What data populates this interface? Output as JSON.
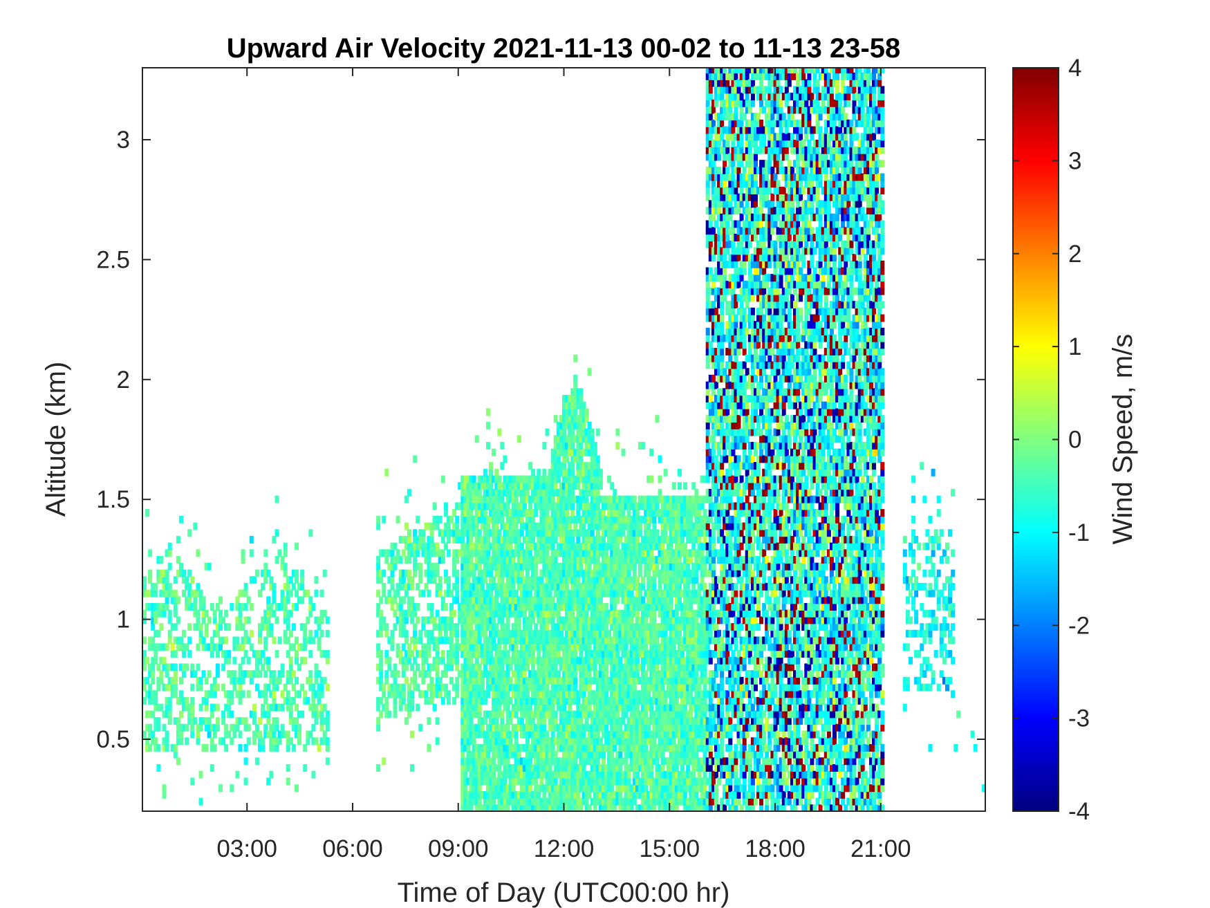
{
  "chart_data": {
    "type": "heatmap",
    "title": "Upward Air Velocity 2021-11-13 00-02 to 11-13 23-58",
    "xlabel": "Time of Day (UTC00:00 hr)",
    "ylabel": "Altitude (km)",
    "colorbar_label": "Wind Speed, m/s",
    "xlim": [
      0.03,
      23.97
    ],
    "ylim": [
      0.2,
      3.3
    ],
    "clim": [
      -4,
      4
    ],
    "colormap": "jet",
    "x_ticks": [
      3,
      6,
      9,
      12,
      15,
      18,
      21
    ],
    "x_tick_labels": [
      "03:00",
      "06:00",
      "09:00",
      "12:00",
      "15:00",
      "18:00",
      "21:00"
    ],
    "y_ticks": [
      0.5,
      1,
      1.5,
      2,
      2.5,
      3
    ],
    "y_tick_labels": [
      "0.5",
      "1",
      "1.5",
      "2",
      "2.5",
      "3"
    ],
    "colorbar_ticks": [
      4,
      3,
      2,
      1,
      0,
      -1,
      -2,
      -3,
      -4
    ],
    "colorbar_tick_labels": [
      "4",
      "3",
      "2",
      "1",
      "0",
      "-1",
      "-2",
      "-3",
      "-4"
    ],
    "series": [
      {
        "time_range_hr": [
          0.0,
          5.0
        ],
        "altitude_range_km": [
          0.4,
          1.3
        ],
        "typical_velocity_ms": -0.3
      },
      {
        "time_range_hr": [
          6.0,
          9.0
        ],
        "altitude_range_km": [
          0.5,
          1.6
        ],
        "typical_velocity_ms": -0.2
      },
      {
        "time_range_hr": [
          9.0,
          16.0
        ],
        "altitude_range_km": [
          0.2,
          1.9
        ],
        "typical_velocity_ms": 0.0
      },
      {
        "time_range_hr": [
          16.0,
          21.0
        ],
        "altitude_range_km": [
          0.2,
          3.3
        ],
        "typical_velocity_ms": -1.0,
        "velocity_extremes_ms": [
          -4,
          4
        ]
      },
      {
        "time_range_hr": [
          21.5,
          23.0
        ],
        "altitude_range_km": [
          0.6,
          1.4
        ],
        "typical_velocity_ms": -1.0
      }
    ]
  }
}
